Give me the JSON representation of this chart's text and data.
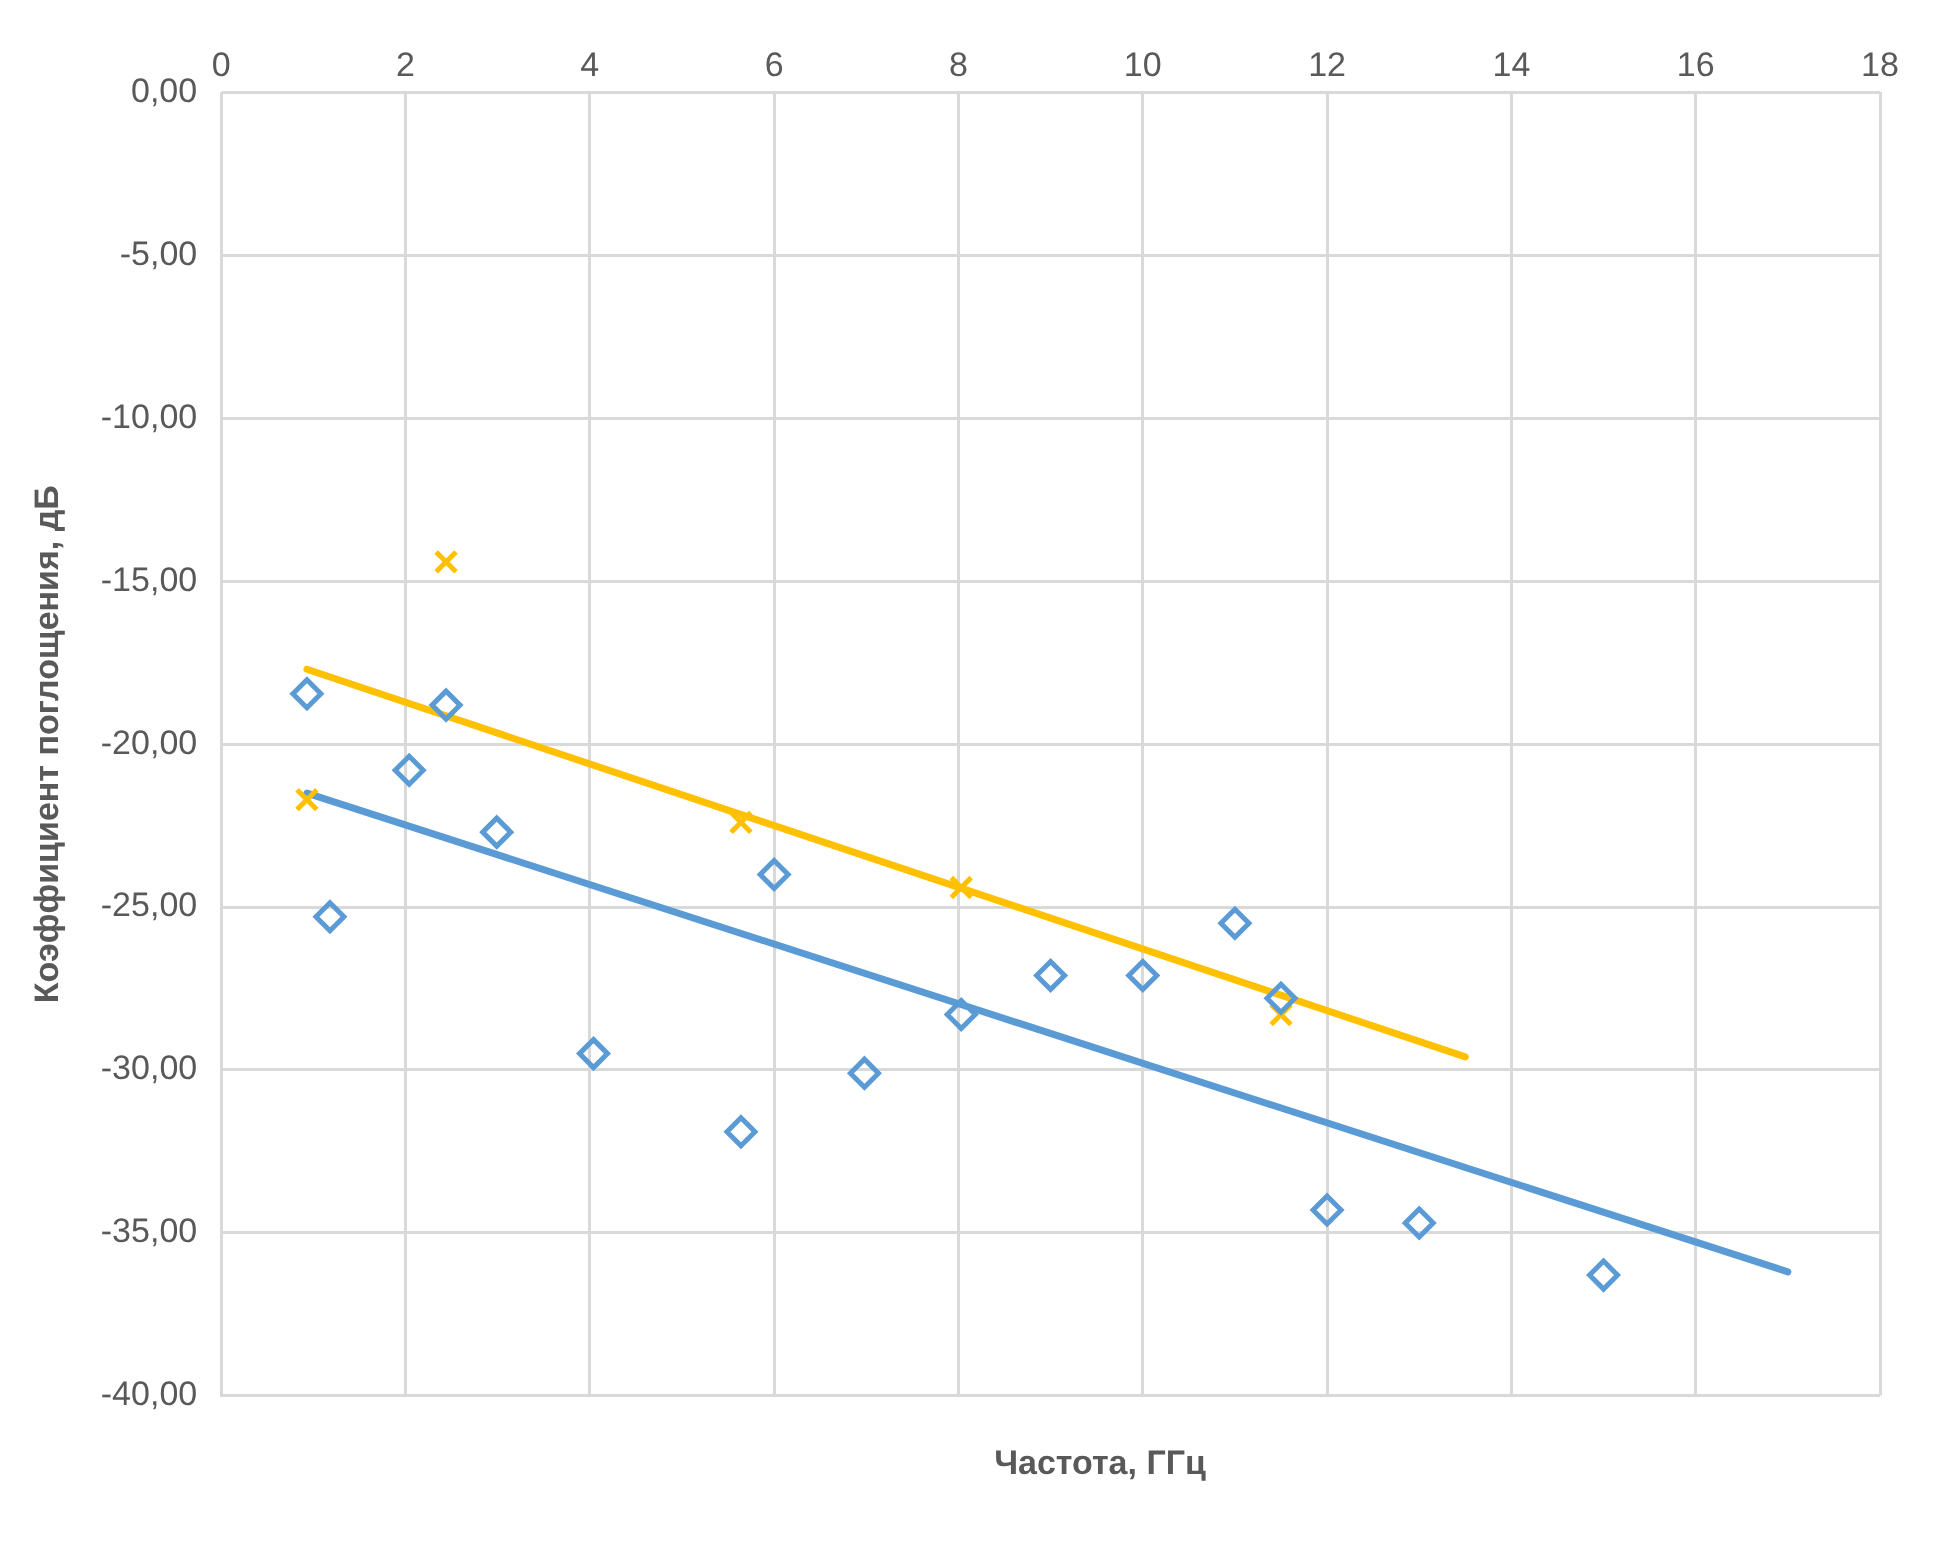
{
  "chart_data": {
    "type": "scatter",
    "xlabel": "Частота, ГГц",
    "ylabel": "Коэффициент поглощения, дБ",
    "xlim": [
      0,
      18
    ],
    "xticks": [
      0,
      2,
      4,
      6,
      8,
      10,
      12,
      14,
      16,
      18
    ],
    "ylim": [
      -40,
      0
    ],
    "yticks": [
      {
        "value": -40,
        "label": "-40,00"
      },
      {
        "value": -35,
        "label": "-35,00"
      },
      {
        "value": -30,
        "label": "-30,00"
      },
      {
        "value": -25,
        "label": "-25,00"
      },
      {
        "value": -20,
        "label": "-20,00"
      },
      {
        "value": -15,
        "label": "-15,00"
      },
      {
        "value": -10,
        "label": "-10,00"
      },
      {
        "value": -5,
        "label": "-5,00"
      },
      {
        "value": 0,
        "label": "0,00"
      }
    ],
    "grid": true,
    "legend": false,
    "series": [
      {
        "type": "scatter",
        "marker": "diamond",
        "color": "#5b9bd5",
        "x": [
          0.93,
          1.18,
          2.04,
          2.44,
          2.99,
          4.04,
          5.64,
          6.0,
          6.98,
          8.03,
          9.0,
          10.0,
          11.0,
          11.5,
          12.0,
          13.0,
          15.0
        ],
        "values": [
          -18.45,
          -25.3,
          -20.8,
          -18.8,
          -22.7,
          -29.5,
          -31.9,
          -24.0,
          -30.1,
          -28.3,
          -27.1,
          -27.1,
          -25.5,
          -27.8,
          -34.3,
          -34.7,
          -36.3
        ]
      },
      {
        "type": "scatter",
        "marker": "cross",
        "color": "#ffc000",
        "x": [
          0.93,
          2.44,
          5.64,
          8.03,
          11.5
        ],
        "values": [
          -21.7,
          -14.4,
          -22.4,
          -24.4,
          -28.3
        ]
      },
      {
        "type": "line",
        "marker": "none",
        "color": "#5b9bd5",
        "x": [
          0.93,
          17.0
        ],
        "values": [
          -21.5,
          -36.2
        ]
      },
      {
        "type": "line",
        "marker": "none",
        "color": "#ffc000",
        "x": [
          0.93,
          13.5
        ],
        "values": [
          -17.7,
          -29.6
        ]
      }
    ]
  }
}
